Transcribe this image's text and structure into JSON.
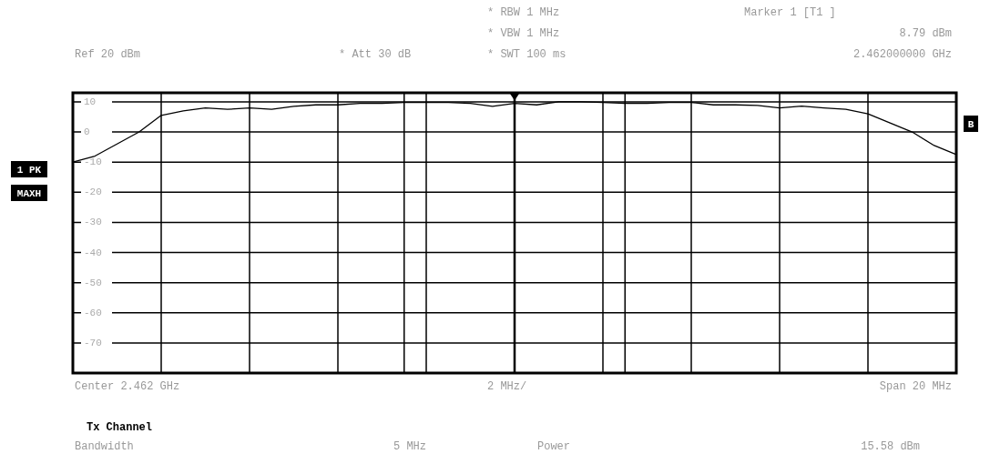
{
  "chart_data": {
    "type": "line",
    "categories": [
      null,
      null,
      null,
      null,
      null,
      null,
      null,
      null,
      null,
      null,
      null,
      null,
      null,
      null,
      null,
      null,
      null,
      null,
      null,
      null,
      null,
      null,
      null,
      null,
      null,
      null,
      null,
      null,
      null,
      null,
      null,
      null,
      null,
      null,
      null,
      null,
      null,
      null,
      null,
      null,
      null
    ],
    "ylim": [
      -80,
      13
    ],
    "yticks": [
      10,
      0,
      -10,
      -20,
      -30,
      -40,
      -50,
      -60,
      -70
    ],
    "grid": true,
    "legend": false,
    "series": [
      {
        "color": "#000000",
        "values": [
          -10,
          -8,
          -4,
          0,
          5.5,
          7,
          8,
          7.5,
          8,
          7.5,
          8.5,
          9,
          9,
          9.5,
          9.5,
          9.8,
          9.8,
          9.8,
          9.5,
          8.5,
          9.5,
          9,
          10,
          10,
          9.8,
          9.5,
          9.5,
          9.8,
          9.8,
          9,
          9,
          8.8,
          8,
          8.6,
          8,
          7.5,
          6,
          3,
          0,
          -4.5,
          -7.5
        ]
      }
    ],
    "annotations": [
      "* RBW 1 MHz",
      "* VBW 1 MHz",
      "* SWT 100 ms",
      "Marker 1 [T1 ]",
      "8.79 dBm",
      "2.462000000 GHz",
      "Ref 20 dBm",
      "* Att 30 dB",
      "1 PK",
      "MAXH",
      "B",
      "Center 2.462 GHz",
      "2 MHz/",
      "Span 20 MHz",
      "Tx Channel",
      "Bandwidth",
      "5 MHz",
      "Power",
      "15.58 dBm"
    ]
  }
}
